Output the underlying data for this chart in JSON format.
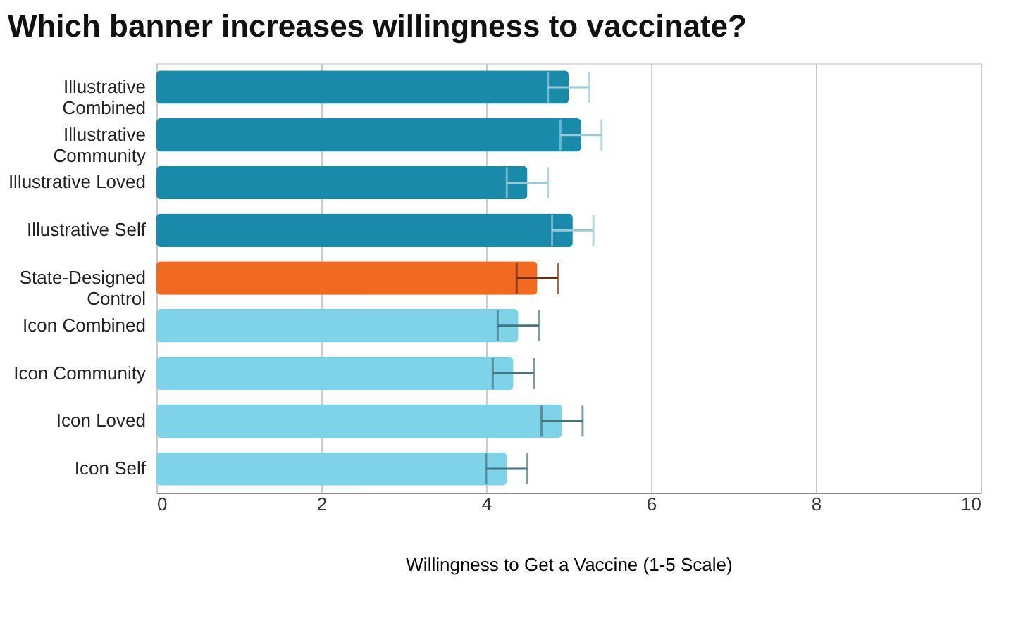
{
  "chart_data": {
    "type": "bar",
    "orientation": "horizontal",
    "title": "Which banner increases willingness to vaccinate?",
    "xlabel": "Willingness to Get a Vaccine (1-5 Scale)",
    "categories": [
      "Illustrative Combined",
      "Illustrative Community",
      "Illustrative Loved",
      "Illustrative Self",
      "State-Designed Control",
      "Icon Combined",
      "Icon Community",
      "Icon Loved",
      "Icon Self"
    ],
    "values": [
      5.0,
      5.15,
      4.5,
      5.05,
      4.62,
      4.39,
      4.33,
      4.92,
      4.25
    ],
    "errors": [
      0.25,
      0.25,
      0.25,
      0.25,
      0.25,
      0.25,
      0.25,
      0.25,
      0.25
    ],
    "colors": [
      "#1a8aab",
      "#1a8aab",
      "#1a8aab",
      "#1a8aab",
      "#f26a21",
      "#7fd3e8",
      "#7fd3e8",
      "#7fd3e8",
      "#7fd3e8"
    ],
    "xlim": [
      0,
      10
    ],
    "xticks": [
      0,
      2,
      4,
      6,
      8,
      10
    ],
    "grid": "x"
  }
}
